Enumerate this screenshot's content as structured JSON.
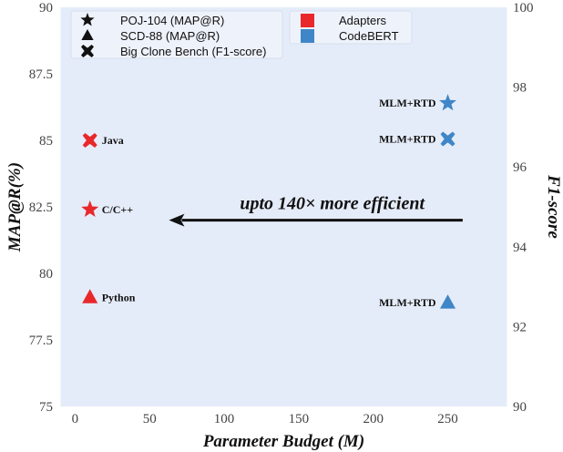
{
  "chart_data": {
    "type": "scatter",
    "xlabel": "Parameter Budget (M)",
    "ylabel_left": "MAP@R(%)",
    "ylabel_right": "F1-score",
    "xlim": [
      -10,
      290
    ],
    "ylim_left": [
      75,
      90
    ],
    "ylim_right": [
      90,
      100
    ],
    "x_ticks": [
      "0",
      "50",
      "100",
      "150",
      "200",
      "250"
    ],
    "y_ticks_left": [
      "75",
      "77.5",
      "80",
      "82.5",
      "85",
      "87.5",
      "90"
    ],
    "y_ticks_right": [
      "90",
      "92",
      "94",
      "96",
      "98",
      "100"
    ],
    "grid": false,
    "background": "#e5ecf9",
    "legend": {
      "placement": "top",
      "markers": [
        {
          "symbol": "star",
          "label": "POJ-104 (MAP@R)"
        },
        {
          "symbol": "triangle",
          "label": "SCD-88 (MAP@R)"
        },
        {
          "symbol": "cross",
          "label": "Big Clone Bench (F1-score)"
        }
      ],
      "colors": [
        {
          "name": "Adapters",
          "color": "#e8282b"
        },
        {
          "name": "CodeBERT",
          "color": "#3f86c8"
        }
      ]
    },
    "points": [
      {
        "model": "Adapters",
        "marker": "cross",
        "axis": "left",
        "x": 10,
        "y": 85.0,
        "label": "Java"
      },
      {
        "model": "Adapters",
        "marker": "star",
        "axis": "left",
        "x": 10,
        "y": 82.4,
        "label": "C/C++"
      },
      {
        "model": "Adapters",
        "marker": "triangle",
        "axis": "left",
        "x": 10,
        "y": 79.1,
        "label": "Python"
      },
      {
        "model": "CodeBERT",
        "marker": "star",
        "axis": "right",
        "x": 250,
        "y": 97.6,
        "label": "MLM+RTD"
      },
      {
        "model": "CodeBERT",
        "marker": "cross",
        "axis": "right",
        "x": 250,
        "y": 96.7,
        "label": "MLM+RTD"
      },
      {
        "model": "CodeBERT",
        "marker": "triangle",
        "axis": "right",
        "x": 250,
        "y": 92.6,
        "label": "MLM+RTD"
      }
    ],
    "annotation": {
      "text": "upto 140× more efficient",
      "arrow_from": [
        260,
        82.0
      ],
      "arrow_to": [
        63,
        82.0
      ]
    }
  }
}
